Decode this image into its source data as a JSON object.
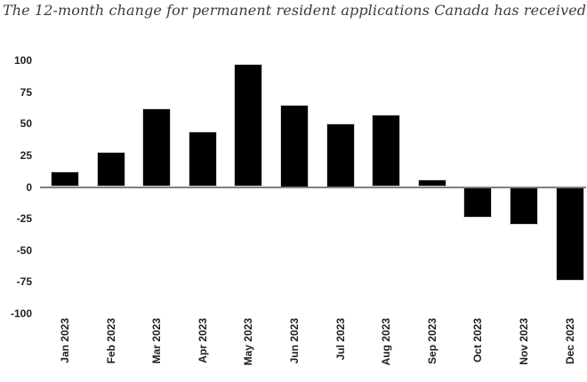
{
  "page": {
    "background": "#ffffff"
  },
  "chart_data": {
    "type": "bar",
    "title": "The 12-month change for permanent resident applications Canada has received.",
    "categories": [
      "Jan 2023",
      "Feb 2023",
      "Mar 2023",
      "Apr 2023",
      "May 2023",
      "Jun 2023",
      "Jul 2023",
      "Aug 2023",
      "Sep 2023",
      "Oct 2023",
      "Nov 2023",
      "Dec 2023"
    ],
    "values": [
      12,
      28,
      62,
      44,
      97,
      65,
      50,
      57,
      6,
      -24,
      -30,
      -74
    ],
    "xlabel": "",
    "ylabel": "",
    "ylim": [
      -100,
      100
    ],
    "yticks": [
      100,
      75,
      50,
      25,
      0,
      -25,
      -50,
      -75,
      -100
    ],
    "grid": false,
    "legend_position": "none",
    "colors": {
      "bar": "#000000",
      "bar_edge": "#d6d6d6",
      "axis_line": "#808080",
      "tick_label": "#212121",
      "title": "#3c3c3c"
    }
  }
}
